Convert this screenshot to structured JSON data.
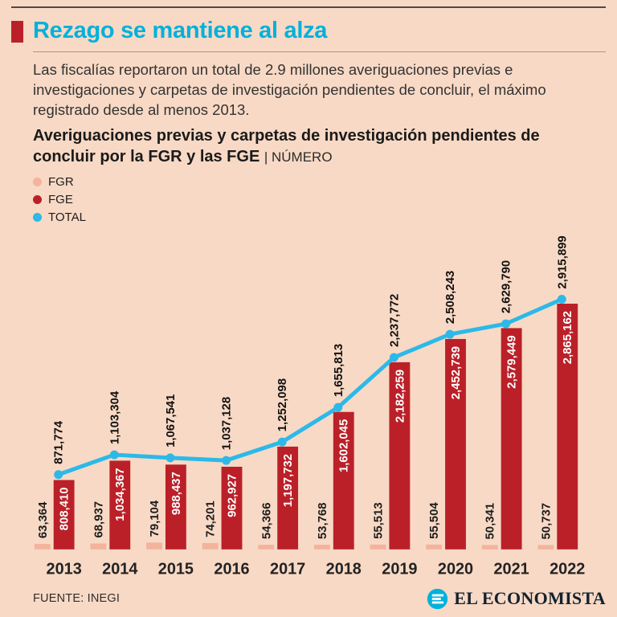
{
  "page": {
    "title": "Rezago se mantiene al alza",
    "intro": "Las fiscalías reportaron un total de 2.9 millones averiguaciones previas e investigaciones y carpetas de investigación pendientes de concluir, el máximo registrado desde al menos 2013.",
    "source": "FUENTE: INEGI",
    "brand": "EL ECONOMISTA"
  },
  "colors": {
    "background": "#f8d9c5",
    "accent_red": "#bb2028",
    "title_cyan": "#00b1dc",
    "line_cyan": "#2cb9e8",
    "fgr_pale": "#f3b39c",
    "text_dark": "#262626"
  },
  "chart_data": {
    "type": "bar+line",
    "title": "Averiguaciones previas y carpetas de investigación pendientes de concluir por la FGR y las FGE",
    "unit_label": "| NÚMERO",
    "categories": [
      "2013",
      "2014",
      "2015",
      "2016",
      "2017",
      "2018",
      "2019",
      "2020",
      "2021",
      "2022"
    ],
    "series": [
      {
        "name": "FGR",
        "kind": "bar",
        "color": "#f3b39c",
        "values": [
          63364,
          68937,
          79104,
          74201,
          54366,
          53768,
          55513,
          55504,
          50341,
          50737
        ],
        "labels": [
          "63,364",
          "68,937",
          "79,104",
          "74,201",
          "54,366",
          "53,768",
          "55,513",
          "55,504",
          "50,341",
          "50,737"
        ]
      },
      {
        "name": "FGE",
        "kind": "bar",
        "color": "#bb2028",
        "values": [
          808410,
          1034367,
          988437,
          962927,
          1197732,
          1602045,
          2182259,
          2452739,
          2579449,
          2865162
        ],
        "labels": [
          "808,410",
          "1,034,367",
          "988,437",
          "962,927",
          "1,197,732",
          "1,602,045",
          "2,182,259",
          "2,452,739",
          "2,579,449",
          "2,865,162"
        ]
      },
      {
        "name": "TOTAL",
        "kind": "line",
        "color": "#2cb9e8",
        "values": [
          871774,
          1103304,
          1067541,
          1037128,
          1252098,
          1655813,
          2237772,
          2508243,
          2629790,
          2915899
        ],
        "labels": [
          "871,774",
          "1,103,304",
          "1,067,541",
          "1,037,128",
          "1,252,098",
          "1,655,813",
          "2,237,772",
          "2,508,243",
          "2,629,790",
          "2,915,899"
        ]
      }
    ],
    "ylim": [
      0,
      3000000
    ],
    "grid": false,
    "legend_position": "top-left"
  }
}
